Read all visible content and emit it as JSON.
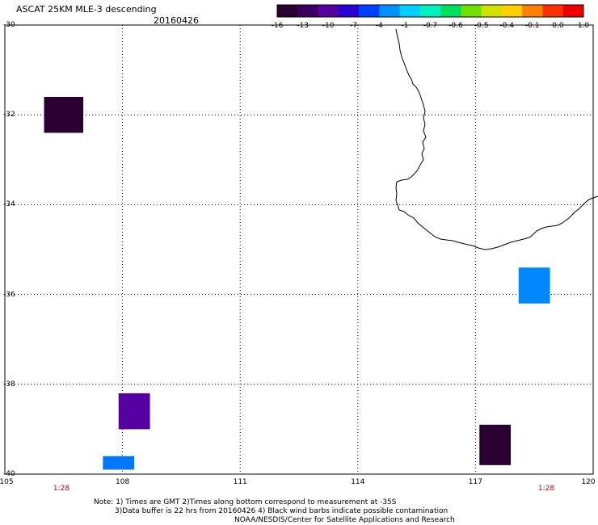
{
  "header": {
    "title": "ASCAT 25KM MLE-3 descending",
    "date": "20160426"
  },
  "colorbar": {
    "labels": [
      "-16",
      "-13",
      "-10",
      "-7",
      "-4",
      "-1",
      "-0.7",
      "-0.6",
      "-0.5",
      "-0.4",
      "-0.1",
      "0.0",
      "1.0"
    ],
    "colors": [
      "#2a0030",
      "#3a0060",
      "#5500a0",
      "#2a00d0",
      "#0040ff",
      "#0090ff",
      "#00d0ff",
      "#00f0c0",
      "#00e060",
      "#70e000",
      "#d0e000",
      "#ffd000",
      "#ff8000",
      "#ff3000",
      "#ee0000"
    ]
  },
  "axes": {
    "y_labels": [
      "-30",
      "-32",
      "-34",
      "-36",
      "-38",
      "-40"
    ],
    "x_labels": [
      "105",
      "108",
      "111",
      "114",
      "117",
      "120"
    ],
    "lat_range": [
      -40,
      -30
    ],
    "lon_range": [
      105,
      120
    ]
  },
  "times": [
    "1:28",
    "1:28"
  ],
  "cells": [
    {
      "lon": [
        106.0,
        107.0
      ],
      "lat": [
        -32.4,
        -31.6
      ],
      "color": "#2a0030"
    },
    {
      "lon": [
        107.9,
        108.7
      ],
      "lat": [
        -39.0,
        -38.2
      ],
      "color": "#5500a0"
    },
    {
      "lon": [
        107.5,
        108.3
      ],
      "lat": [
        -39.9,
        -39.6
      ],
      "color": "#0077ff"
    },
    {
      "lon": [
        117.1,
        117.9
      ],
      "lat": [
        -39.8,
        -38.9
      ],
      "color": "#2a0030"
    },
    {
      "lon": [
        118.1,
        118.9
      ],
      "lat": [
        -36.2,
        -35.4
      ],
      "color": "#0088ff"
    }
  ],
  "notes": {
    "line1": "Note: 1) Times are GMT 2)Times along bottom correspond to measurement at -35S",
    "line2": "3)Data buffer is 22 hrs from 20160426 4) Black wind barbs indicate possible contamination",
    "line3": "NOAA/NESDIS/Center for Satellite Applications and Research"
  }
}
